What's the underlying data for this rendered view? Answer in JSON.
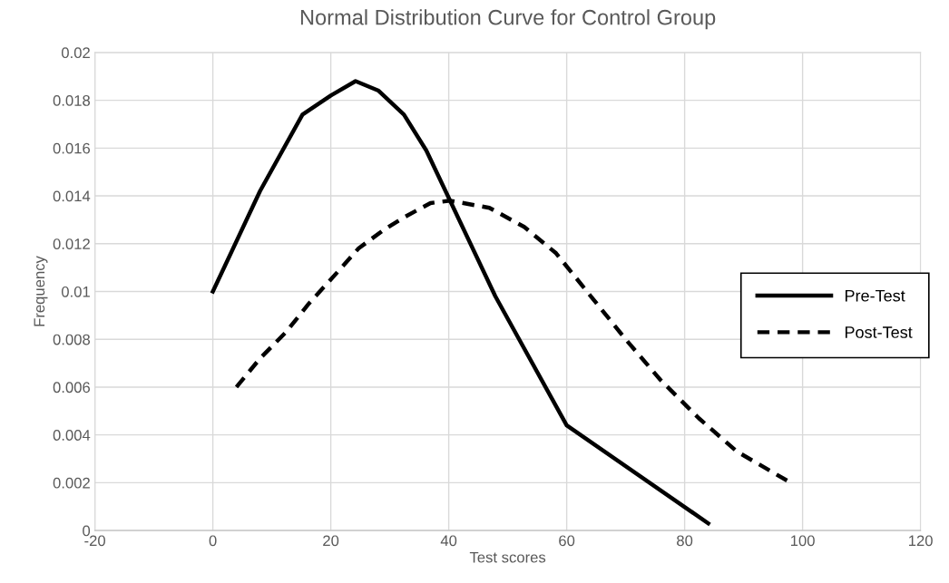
{
  "chart_data": {
    "type": "line",
    "title": "Normal Distribution Curve for Control Group",
    "xlabel": "Test scores",
    "ylabel": "Frequency",
    "series": [
      {
        "name": "Pre-Test",
        "color": "#000000",
        "line_style": "solid",
        "x": [
          0,
          8,
          15.2,
          20,
          24.2,
          28.1,
          32.4,
          36.2,
          47.9,
          60,
          84
        ],
        "values": [
          0.01,
          0.0142,
          0.0174,
          0.0182,
          0.0188,
          0.0184,
          0.0174,
          0.0159,
          0.0098,
          0.0044,
          0.0003
        ]
      },
      {
        "name": "Post-Test",
        "color": "#000000",
        "line_style": "dashed",
        "x": [
          4,
          8,
          12.4,
          16.3,
          20,
          24.7,
          29.1,
          32.4,
          36.9,
          40.2,
          46.9,
          52.8,
          58.2,
          64.1,
          70,
          75.9,
          82.4,
          88.9,
          98
        ],
        "values": [
          0.006,
          0.0072,
          0.0083,
          0.0095,
          0.0105,
          0.0118,
          0.0126,
          0.0131,
          0.0137,
          0.0138,
          0.0135,
          0.0127,
          0.0116,
          0.0098,
          0.008,
          0.0063,
          0.0047,
          0.0033,
          0.002
        ]
      }
    ],
    "xlim": [
      -20,
      120
    ],
    "xticks": [
      -20,
      0,
      20,
      40,
      60,
      80,
      100,
      120
    ],
    "ylim": [
      0,
      0.02
    ],
    "yticks": [
      0,
      0.002,
      0.004,
      0.006,
      0.008,
      0.01,
      0.012,
      0.014,
      0.016,
      0.018,
      0.02
    ],
    "grid": true,
    "legend": "right",
    "marker": "none"
  }
}
